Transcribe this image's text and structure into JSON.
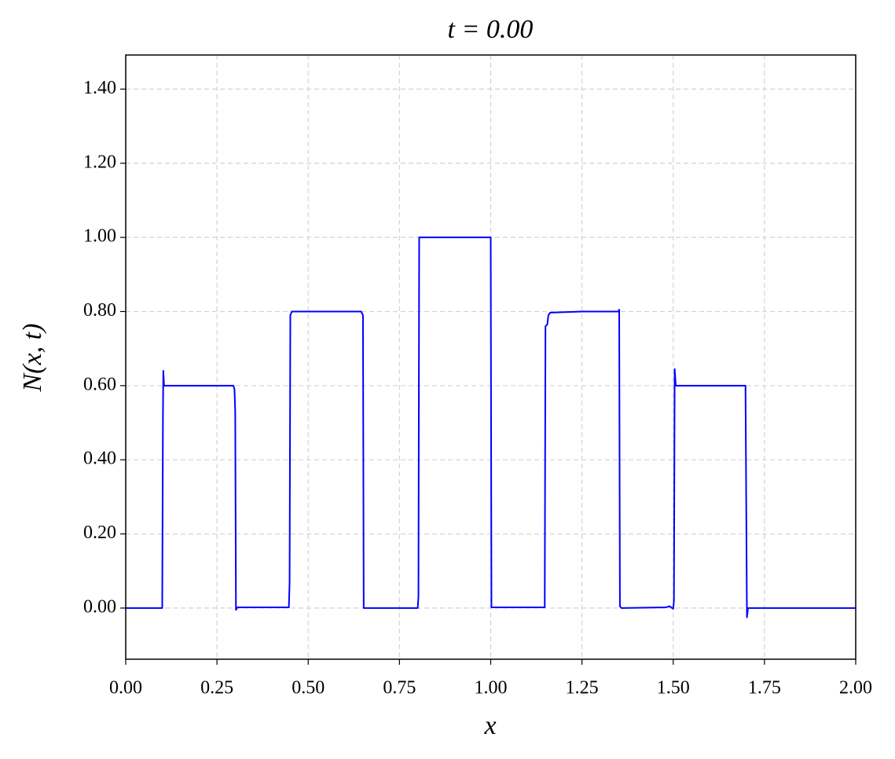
{
  "chart_data": {
    "type": "line",
    "title": "t = 0.00",
    "x_label": "x",
    "y_label": "N(x, t)",
    "x": [
      0,
      0.1,
      0.102,
      0.103,
      0.105,
      0.295,
      0.298,
      0.3,
      0.302,
      0.306,
      0.447,
      0.449,
      0.451,
      0.455,
      0.645,
      0.65,
      0.652,
      0.8,
      0.802,
      0.804,
      1.0,
      1.002,
      1.148,
      1.15,
      1.155,
      1.158,
      1.163,
      1.25,
      1.35,
      1.352,
      1.354,
      1.358,
      1.48,
      1.49,
      1.5,
      1.502,
      1.504,
      1.507,
      1.698,
      1.702,
      1.705,
      2.0
    ],
    "series": [
      {
        "color": "#0000ff",
        "values": [
          0,
          0,
          0.52,
          0.64,
          0.6,
          0.6,
          0.59,
          0.53,
          -0.005,
          0.002,
          0.002,
          0.07,
          0.79,
          0.8,
          0.8,
          0.79,
          0,
          0,
          0.03,
          1.0,
          1.0,
          0.002,
          0.002,
          0.76,
          0.765,
          0.79,
          0.797,
          0.8,
          0.8,
          0.805,
          0.005,
          0,
          0.002,
          0.005,
          -0.002,
          0.02,
          0.645,
          0.6,
          0.6,
          -0.025,
          0,
          0
        ]
      }
    ],
    "xlim": [
      0,
      2
    ],
    "ylim": [
      -0.138,
      1.492
    ],
    "xticks": [
      {
        "value": 0,
        "label": "0.00"
      },
      {
        "value": 0.25,
        "label": "0.25"
      },
      {
        "value": 0.5,
        "label": "0.50"
      },
      {
        "value": 0.75,
        "label": "0.75"
      },
      {
        "value": 1,
        "label": "1.00"
      },
      {
        "value": 1.25,
        "label": "1.25"
      },
      {
        "value": 1.5,
        "label": "1.50"
      },
      {
        "value": 1.75,
        "label": "1.75"
      },
      {
        "value": 2,
        "label": "2.00"
      }
    ],
    "yticks": [
      {
        "value": 0,
        "label": "0.00"
      },
      {
        "value": 0.2,
        "label": "0.20"
      },
      {
        "value": 0.4,
        "label": "0.40"
      },
      {
        "value": 0.6,
        "label": "0.60"
      },
      {
        "value": 0.8,
        "label": "0.80"
      },
      {
        "value": 1,
        "label": "1.00"
      },
      {
        "value": 1.2,
        "label": "1.20"
      },
      {
        "value": 1.4,
        "label": "1.40"
      }
    ],
    "grid": true
  }
}
